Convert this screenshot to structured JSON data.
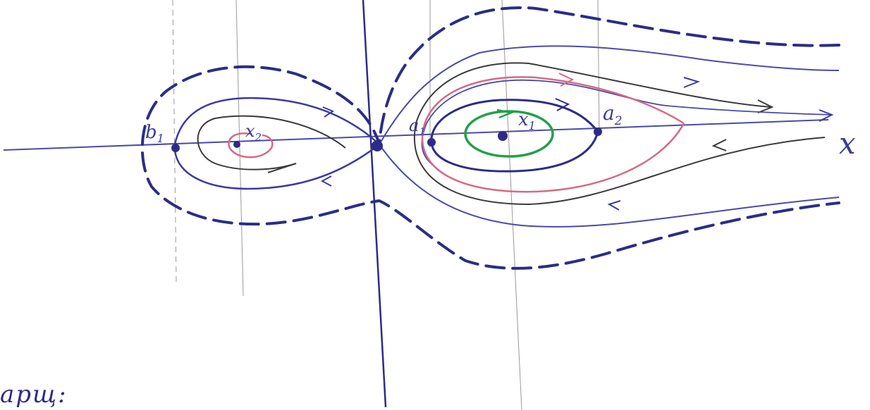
{
  "labels": {
    "axis_x": "x",
    "b1": "b",
    "b1_sub": "1",
    "x2": "x",
    "x2_sub": "2",
    "a1": "a",
    "a1_sub": "1",
    "x1": "x",
    "x1_sub": "1",
    "a2": "a",
    "a2_sub": "2"
  },
  "bottom_text": "арщ:",
  "colors": {
    "ink_blue": "#2c2c86",
    "ink_blue_light": "#5a5ab4",
    "ink_black": "#3a3a3a",
    "ink_red": "#d46a86",
    "ink_green": "#22a04a",
    "grid_gray": "#9a9a9a"
  }
}
